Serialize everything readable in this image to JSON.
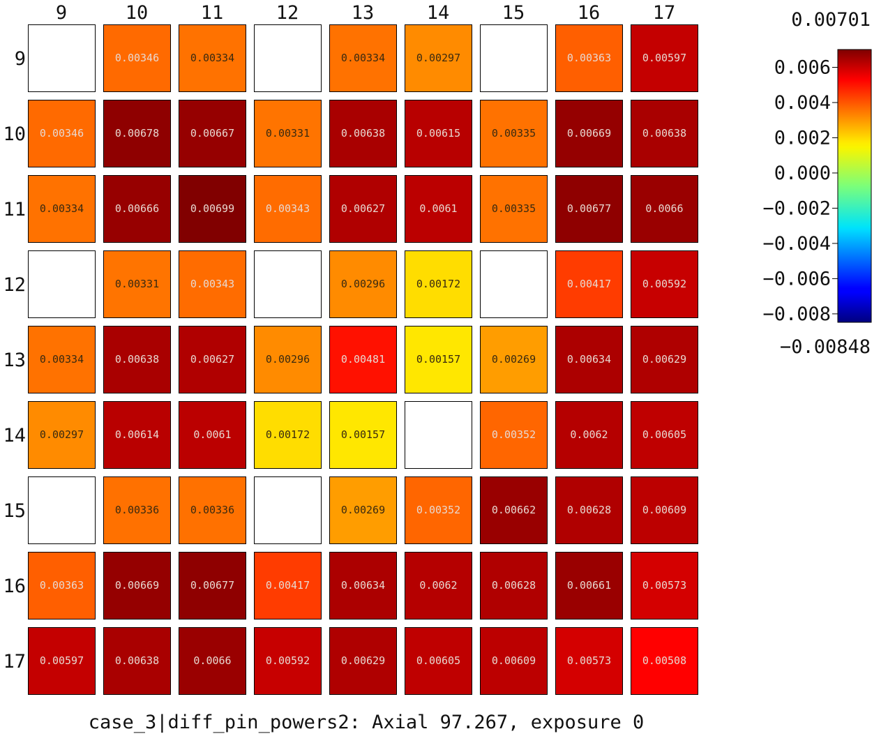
{
  "chart_data": {
    "type": "heatmap",
    "title": "case_3|diff_pin_powers2: Axial 97.267, exposure 0",
    "x_labels": [
      "9",
      "10",
      "11",
      "12",
      "13",
      "14",
      "15",
      "16",
      "17"
    ],
    "y_labels": [
      "9",
      "10",
      "11",
      "12",
      "13",
      "14",
      "15",
      "16",
      "17"
    ],
    "values": [
      [
        null,
        0.00346,
        0.00334,
        null,
        0.00334,
        0.00297,
        null,
        0.00363,
        0.00597
      ],
      [
        0.00346,
        0.00678,
        0.00667,
        0.00331,
        0.00638,
        0.00615,
        0.00335,
        0.00669,
        0.00638
      ],
      [
        0.00334,
        0.00666,
        0.00699,
        0.00343,
        0.00627,
        0.0061,
        0.00335,
        0.00677,
        0.0066
      ],
      [
        null,
        0.00331,
        0.00343,
        null,
        0.00296,
        0.00172,
        null,
        0.00417,
        0.00592
      ],
      [
        0.00334,
        0.00638,
        0.00627,
        0.00296,
        0.00481,
        0.00157,
        0.00269,
        0.00634,
        0.00629
      ],
      [
        0.00297,
        0.00614,
        0.0061,
        0.00172,
        0.00157,
        null,
        0.00352,
        0.0062,
        0.00605
      ],
      [
        null,
        0.00336,
        0.00336,
        null,
        0.00269,
        0.00352,
        0.00662,
        0.00628,
        0.00609
      ],
      [
        0.00363,
        0.00669,
        0.00677,
        0.00417,
        0.00634,
        0.0062,
        0.00628,
        0.00661,
        0.00573
      ],
      [
        0.00597,
        0.00638,
        0.0066,
        0.00592,
        0.00629,
        0.00605,
        0.00609,
        0.00573,
        0.00508
      ]
    ],
    "value_labels": [
      [
        "",
        "0.00346",
        "0.00334",
        "",
        "0.00334",
        "0.00297",
        "",
        "0.00363",
        "0.00597"
      ],
      [
        "0.00346",
        "0.00678",
        "0.00667",
        "0.00331",
        "0.00638",
        "0.00615",
        "0.00335",
        "0.00669",
        "0.00638"
      ],
      [
        "0.00334",
        "0.00666",
        "0.00699",
        "0.00343",
        "0.00627",
        "0.0061",
        "0.00335",
        "0.00677",
        "0.0066"
      ],
      [
        "",
        "0.00331",
        "0.00343",
        "",
        "0.00296",
        "0.00172",
        "",
        "0.00417",
        "0.00592"
      ],
      [
        "0.00334",
        "0.00638",
        "0.00627",
        "0.00296",
        "0.00481",
        "0.00157",
        "0.00269",
        "0.00634",
        "0.00629"
      ],
      [
        "0.00297",
        "0.00614",
        "0.0061",
        "0.00172",
        "0.00157",
        "",
        "0.00352",
        "0.0062",
        "0.00605"
      ],
      [
        "",
        "0.00336",
        "0.00336",
        "",
        "0.00269",
        "0.00352",
        "0.00662",
        "0.00628",
        "0.00609"
      ],
      [
        "0.00363",
        "0.00669",
        "0.00677",
        "0.00417",
        "0.00634",
        "0.0062",
        "0.00628",
        "0.00661",
        "0.00573"
      ],
      [
        "0.00597",
        "0.00638",
        "0.0066",
        "0.00592",
        "0.00629",
        "0.00605",
        "0.00609",
        "0.00573",
        "0.00508"
      ]
    ],
    "colorbar": {
      "colormap": "jet",
      "min": -0.00848,
      "max": 0.00701,
      "min_label": "−0.00848",
      "max_label": "0.00701",
      "ticks": [
        0.006,
        0.004,
        0.002,
        0.0,
        -0.002,
        -0.004,
        -0.006,
        -0.008
      ],
      "tick_labels": [
        "0.006",
        "0.004",
        "0.002",
        "0.000",
        "−0.002",
        "−0.004",
        "−0.006",
        "−0.008"
      ]
    },
    "empty_cell_color": "#ffffff",
    "cell_border_color": "#000000"
  }
}
